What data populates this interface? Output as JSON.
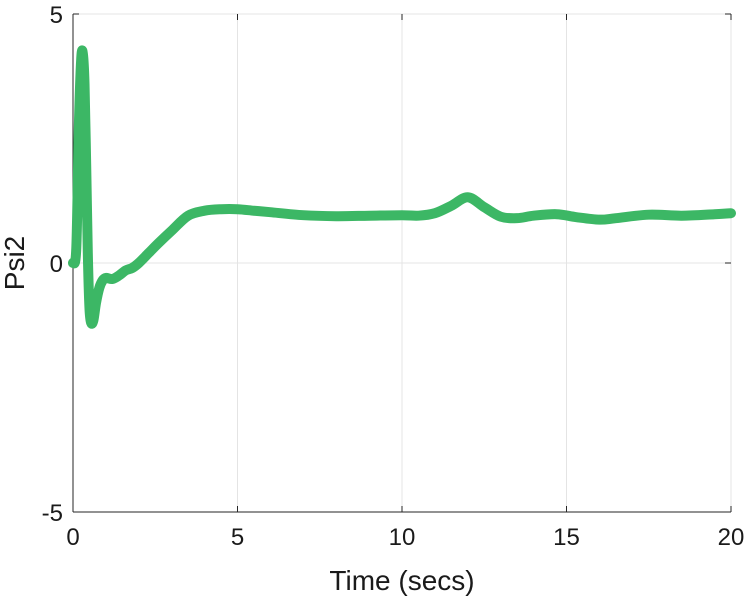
{
  "chart_data": {
    "type": "line",
    "title": "",
    "xlabel": "Time (secs)",
    "ylabel": "Psi2",
    "xlim": [
      0,
      20
    ],
    "ylim": [
      -5,
      5
    ],
    "xticks": [
      0,
      5,
      10,
      15,
      20
    ],
    "yticks": [
      -5,
      0,
      5
    ],
    "grid": true,
    "legend": "none",
    "colors": {
      "line": "#3cb765",
      "grid": "#e4e4e4",
      "axis": "#262626"
    },
    "series": [
      {
        "x": [
          0,
          0.1,
          0.18,
          0.25,
          0.3,
          0.35,
          0.4,
          0.45,
          0.5,
          0.55,
          0.62,
          0.7,
          0.8,
          0.9,
          1.0,
          1.2,
          1.4,
          1.6,
          1.8,
          2.0,
          2.3,
          2.6,
          3.0,
          3.5,
          4.0,
          4.5,
          5.0,
          5.5,
          6.0,
          7.0,
          8.0,
          9.0,
          10.0,
          10.5,
          11.0,
          11.5,
          12.0,
          12.5,
          13.0,
          13.5,
          14.0,
          14.7,
          15.3,
          16.0,
          16.5,
          17.5,
          18.5,
          19.5,
          20.0
        ],
        "y": [
          0,
          0.3,
          2.8,
          4.1,
          4.2,
          3.6,
          2.0,
          0.2,
          -0.9,
          -1.2,
          -1.15,
          -0.8,
          -0.5,
          -0.35,
          -0.3,
          -0.32,
          -0.25,
          -0.15,
          -0.1,
          0.0,
          0.2,
          0.4,
          0.65,
          0.95,
          1.05,
          1.08,
          1.08,
          1.05,
          1.02,
          0.96,
          0.94,
          0.95,
          0.96,
          0.95,
          1.0,
          1.15,
          1.32,
          1.12,
          0.93,
          0.9,
          0.95,
          0.98,
          0.92,
          0.87,
          0.9,
          0.97,
          0.95,
          0.98,
          1.0
        ]
      }
    ]
  }
}
